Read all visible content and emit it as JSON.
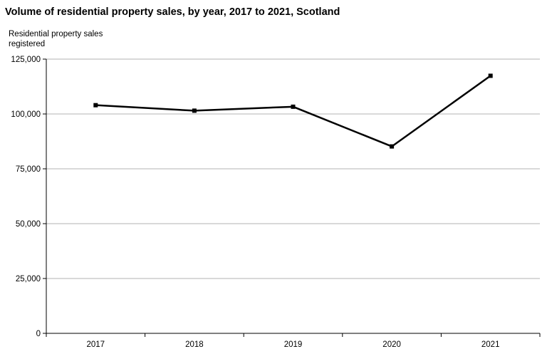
{
  "chart_data": {
    "type": "line",
    "title": "Volume of residential property sales, by year, 2017 to 2021, Scotland",
    "ylabel": "Residential property sales registered",
    "xlabel": "",
    "categories": [
      "2017",
      "2018",
      "2019",
      "2020",
      "2021"
    ],
    "series": [
      {
        "values": [
          104000,
          101500,
          103300,
          85200,
          117400
        ]
      }
    ],
    "ylim": [
      0,
      125000
    ],
    "yticks": [
      0,
      25000,
      50000,
      75000,
      100000,
      125000
    ],
    "ytick_labels": [
      "0",
      "25,000",
      "50,000",
      "75,000",
      "100,000",
      "125,000"
    ],
    "grid": true,
    "legend": "none",
    "line_color": "#000000",
    "grid_color": "#b3b3b3"
  }
}
